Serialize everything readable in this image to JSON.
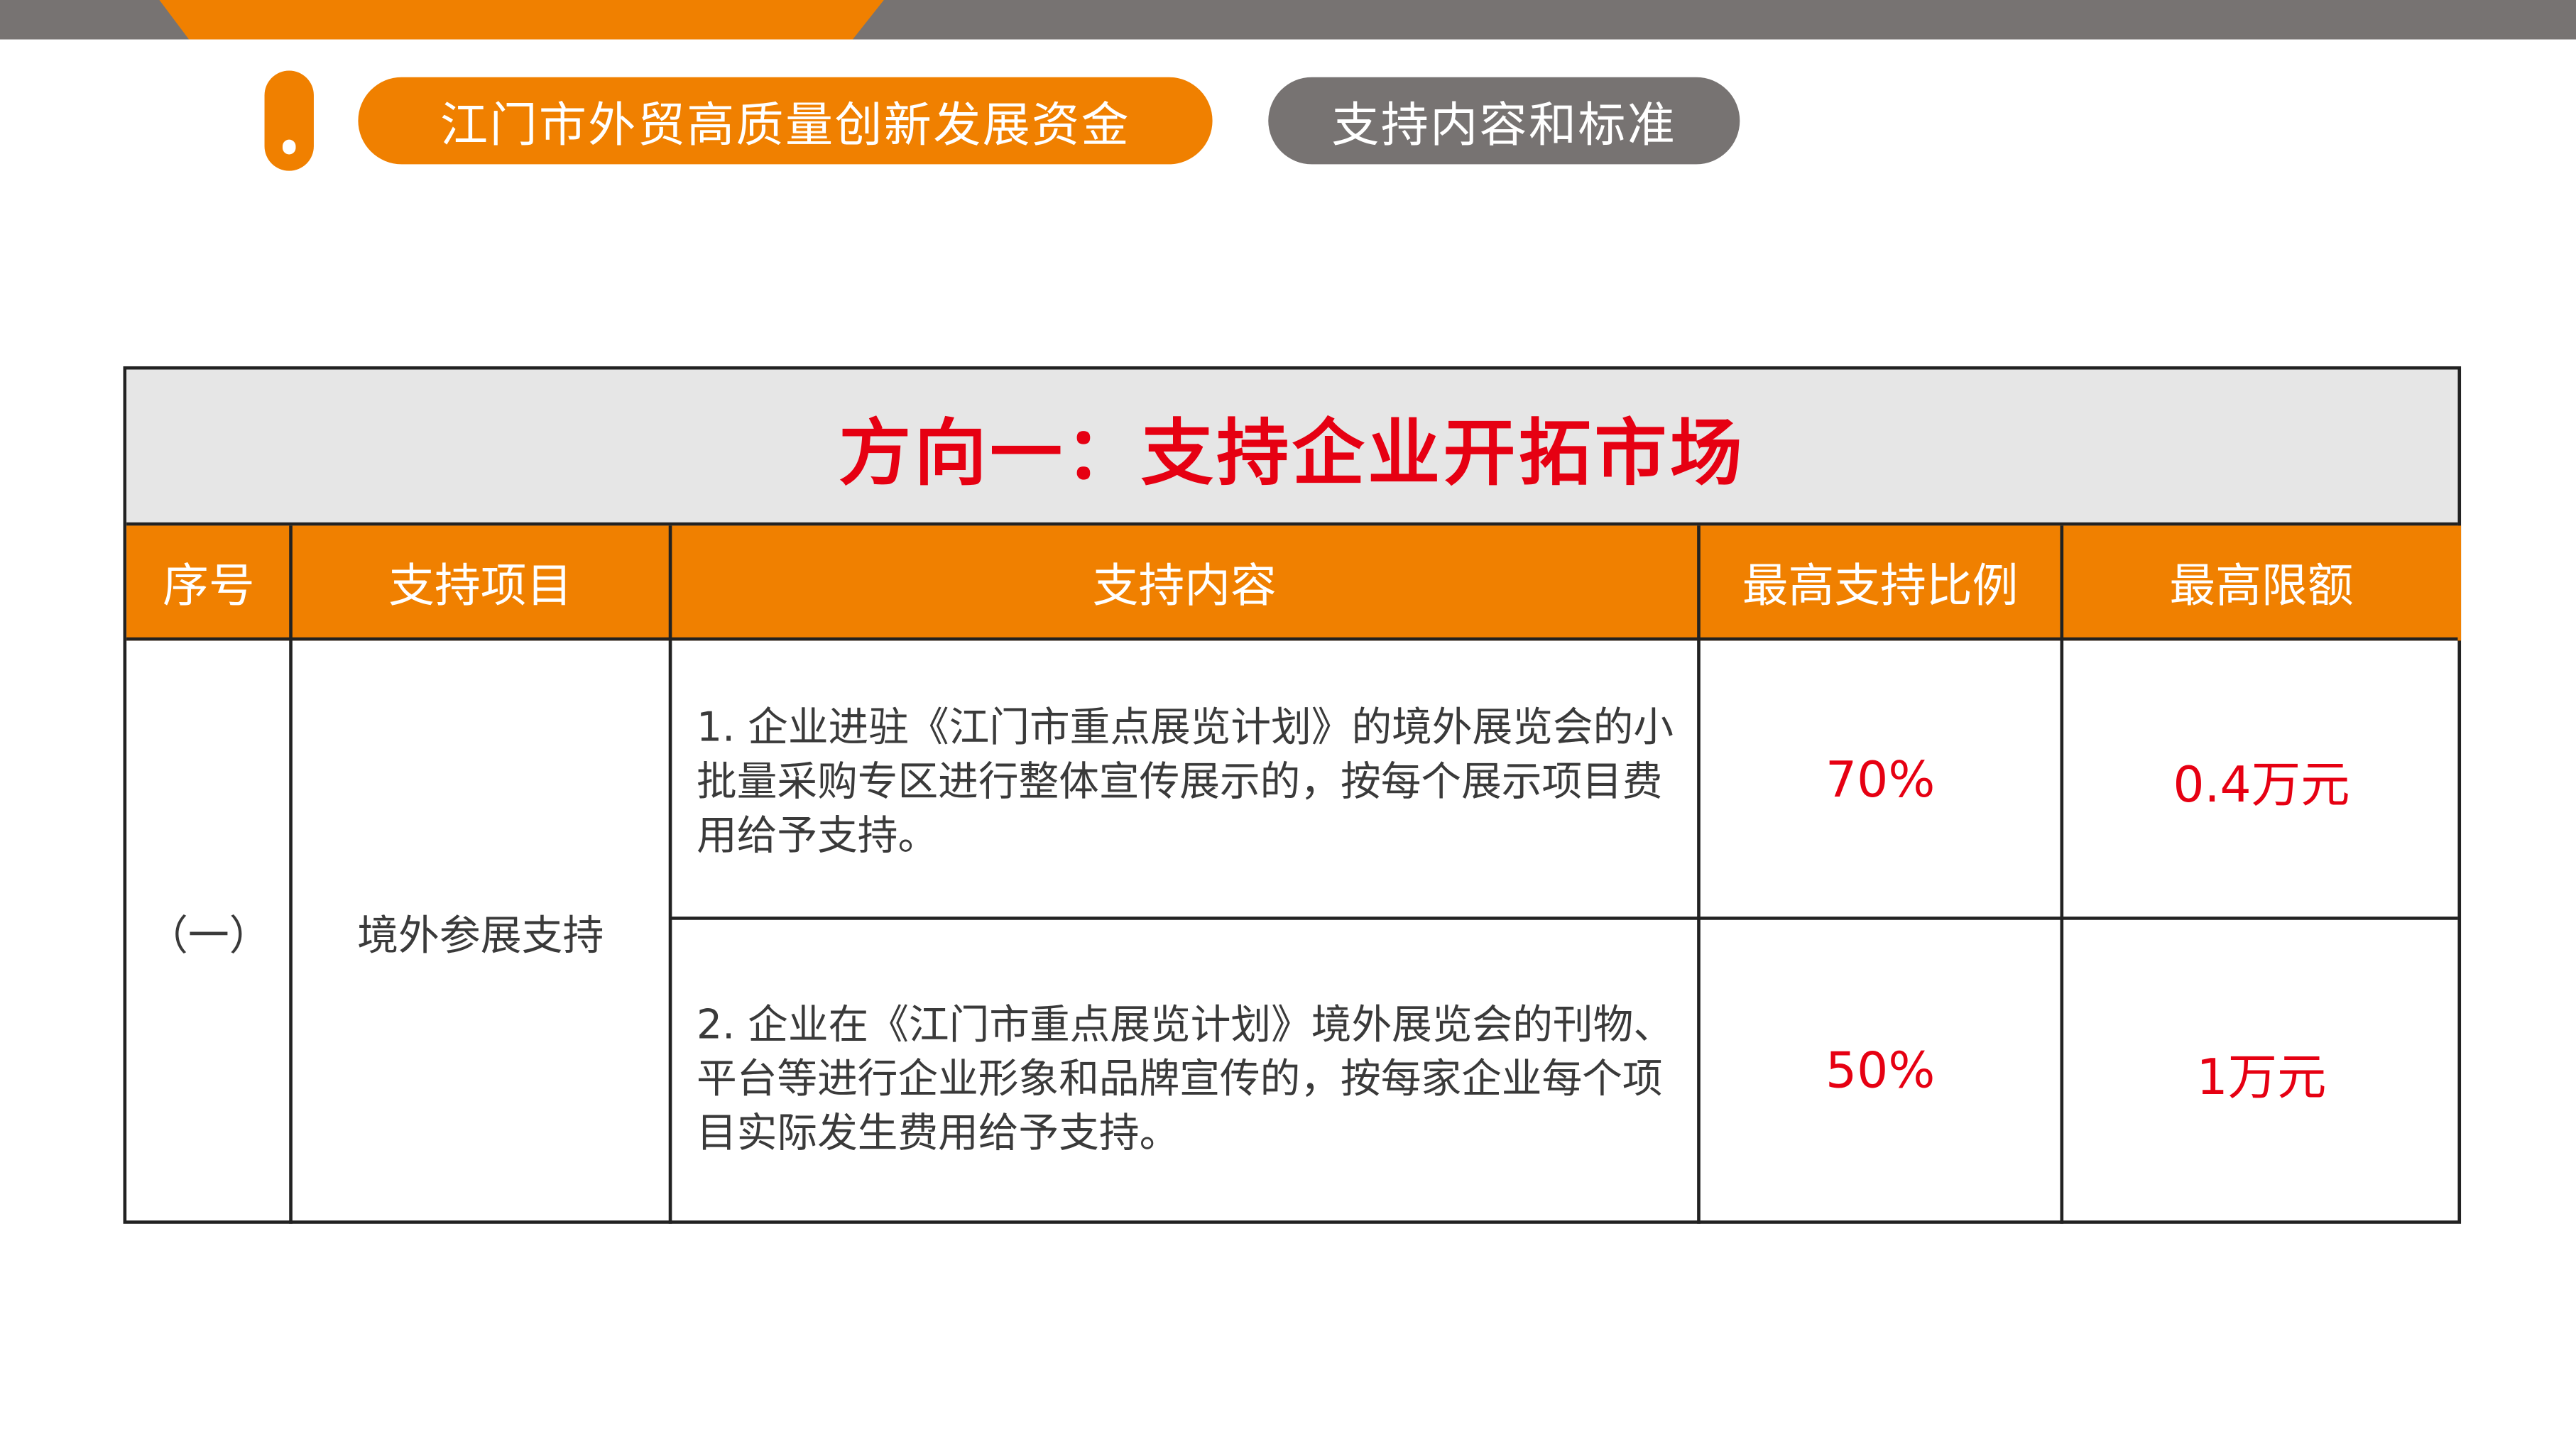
{
  "header": {
    "title_pill": "江门市外贸高质量创新发展资金",
    "subtitle_pill": "支持内容和标准"
  },
  "colors": {
    "accent": "#f08000",
    "gray": "#777372",
    "highlight": "#e60012"
  },
  "table": {
    "title": "方向一：支持企业开拓市场",
    "columns": [
      "序号",
      "支持项目",
      "支持内容",
      "最高支持比例",
      "最高限额"
    ],
    "group": {
      "index": "（一）",
      "item": "境外参展支持",
      "rows": [
        {
          "content": "1.  企业进驻《江门市重点展览计划》的境外展览会的小批量采购专区进行整体宣传展示的，按每个展示项目费用给予支持。",
          "ratio": "70%",
          "limit": "0.4万元"
        },
        {
          "content": "2.  企业在《江门市重点展览计划》境外展览会的刊物、平台等进行企业形象和品牌宣传的，按每家企业每个项目实际发生费用给予支持。",
          "ratio": "50%",
          "limit": "1万元"
        }
      ]
    }
  }
}
